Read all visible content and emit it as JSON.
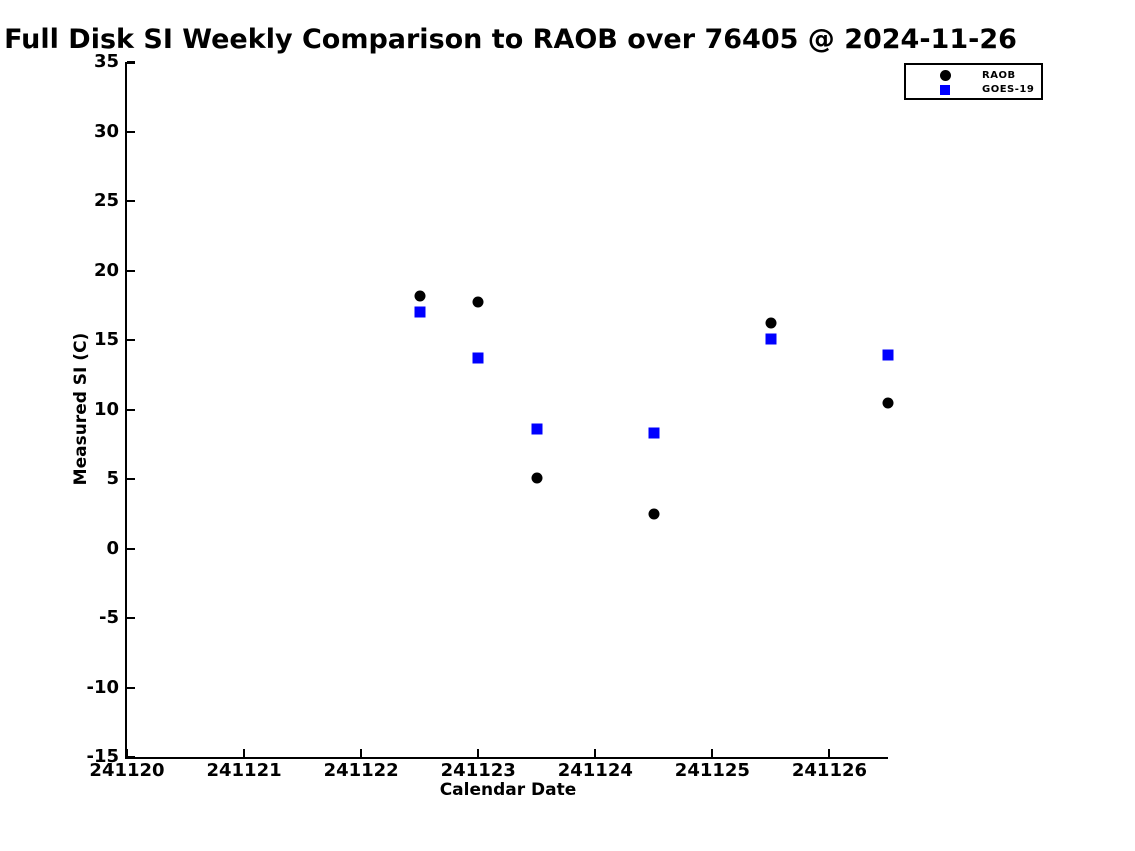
{
  "chart_data": {
    "type": "scatter",
    "title": "Full Disk SI Weekly Comparison to RAOB over 76405 @ 2024-11-26",
    "xlabel": "Calendar Date",
    "ylabel": "Measured SI (C)",
    "xlim": [
      241120,
      241126.5
    ],
    "ylim": [
      -15,
      35
    ],
    "x_ticks": [
      241120,
      241121,
      241122,
      241123,
      241124,
      241125,
      241126
    ],
    "y_ticks": [
      -15,
      -10,
      -5,
      0,
      5,
      10,
      15,
      20,
      25,
      30,
      35
    ],
    "grid": false,
    "legend_position": "top-right",
    "series": [
      {
        "name": "RAOB",
        "marker": "circle",
        "color": "#000000",
        "points": [
          [
            241122.5,
            18.2
          ],
          [
            241123.0,
            17.7
          ],
          [
            241123.5,
            5.1
          ],
          [
            241124.5,
            2.5
          ],
          [
            241125.5,
            16.2
          ],
          [
            241126.5,
            10.5
          ]
        ]
      },
      {
        "name": "GOES-19",
        "marker": "square",
        "color": "#0000ff",
        "points": [
          [
            241122.5,
            17.0
          ],
          [
            241123.0,
            13.7
          ],
          [
            241123.5,
            8.6
          ],
          [
            241124.5,
            8.3
          ],
          [
            241125.5,
            15.1
          ],
          [
            241126.5,
            13.9
          ]
        ]
      }
    ]
  }
}
